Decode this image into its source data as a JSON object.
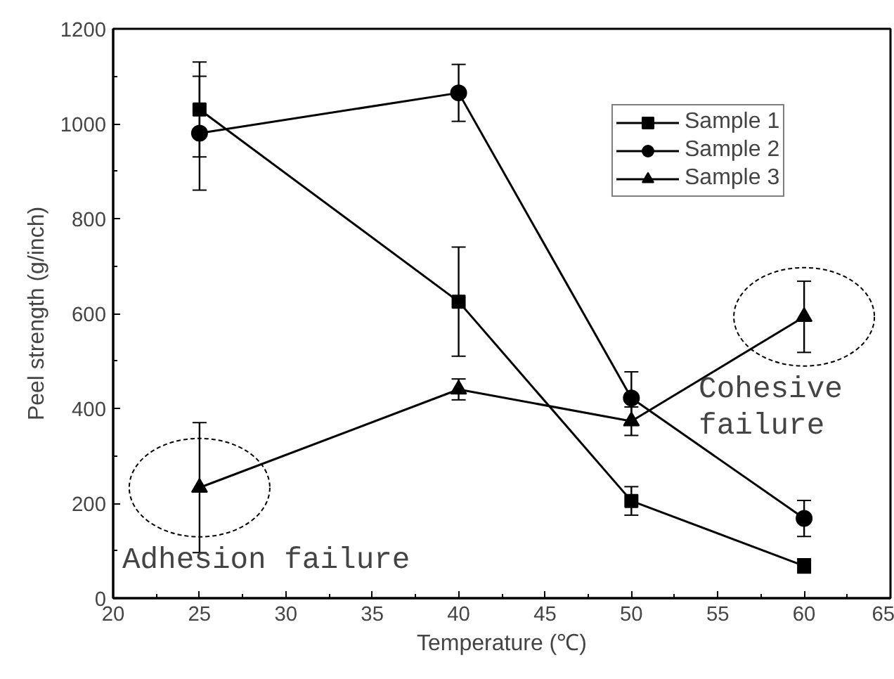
{
  "chart_data": {
    "type": "line",
    "xlabel": "Temperature (℃)",
    "ylabel": "Peel strength (g/inch)",
    "x": [
      25,
      40,
      50,
      60
    ],
    "series": [
      {
        "name": "Sample 1",
        "color": "#000000",
        "marker": "square",
        "values": [
          1030,
          625,
          205,
          68
        ],
        "errors": [
          100,
          115,
          30,
          15
        ]
      },
      {
        "name": "Sample 2",
        "color": "#000000",
        "marker": "circle",
        "values": [
          980,
          1065,
          422,
          168
        ],
        "errors": [
          120,
          60,
          55,
          38
        ]
      },
      {
        "name": "Sample 3",
        "color": "#000000",
        "marker": "triangle",
        "values": [
          233,
          440,
          373,
          593
        ],
        "errors": [
          137,
          22,
          30,
          75
        ]
      }
    ],
    "xlim": [
      20,
      65
    ],
    "xticks": [
      20,
      25,
      30,
      35,
      40,
      45,
      50,
      55,
      60,
      65
    ],
    "ylim": [
      0,
      1200
    ],
    "yticks": [
      0,
      200,
      400,
      600,
      800,
      1000,
      1200
    ],
    "grid": false,
    "legend": "top right",
    "line_style": "solid",
    "annotations": [
      {
        "text": "Adhesion failure",
        "x": 25,
        "y": 233
      },
      {
        "text": "Cohesive\nfailure",
        "x": 60,
        "y": 593
      }
    ]
  }
}
